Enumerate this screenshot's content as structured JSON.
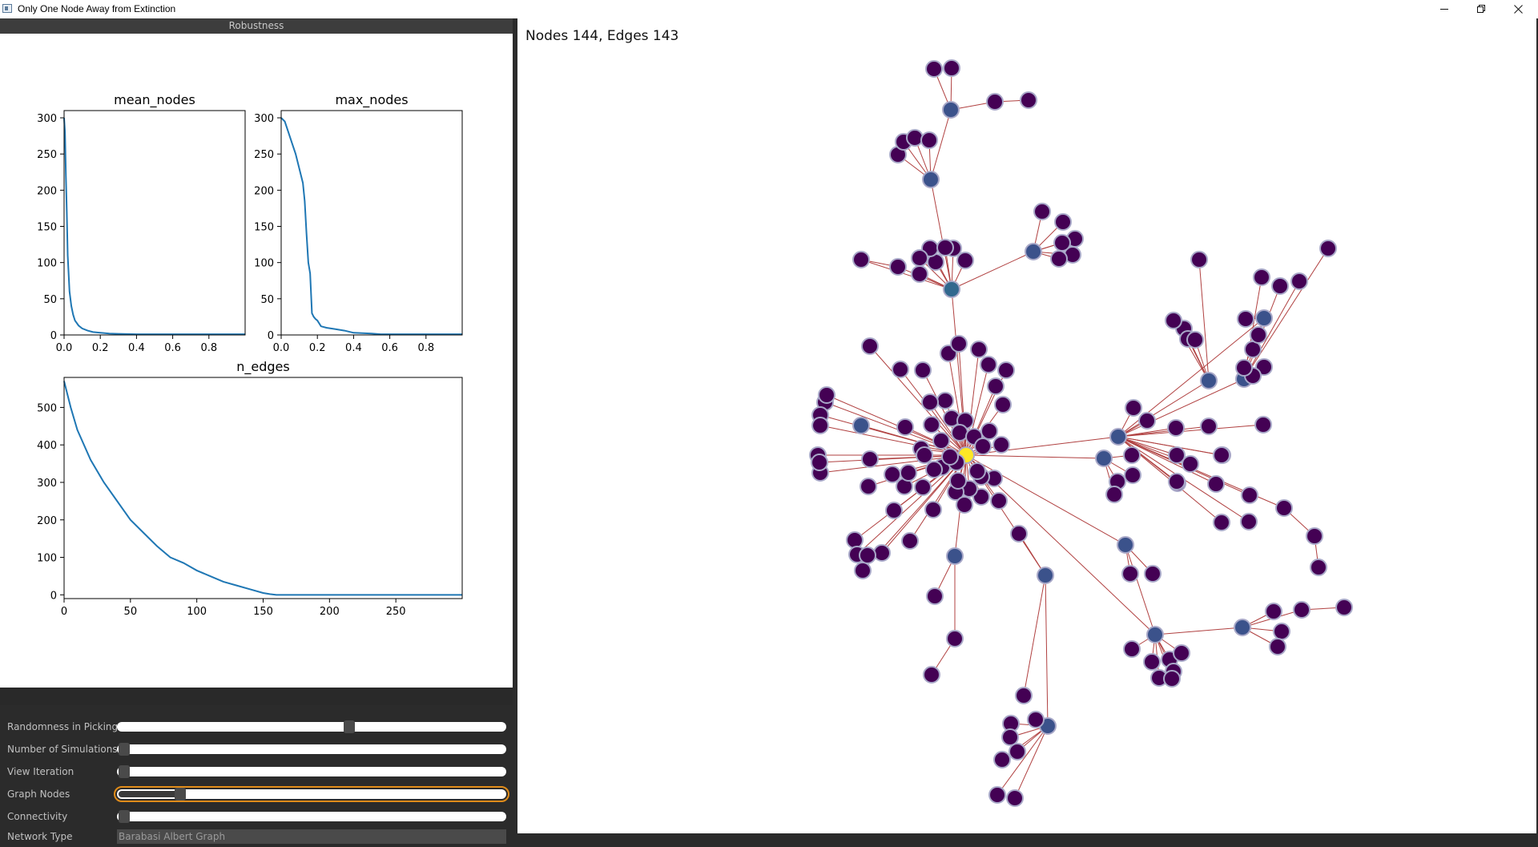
{
  "window": {
    "title": "Only One Node Away from Extinction",
    "minimize_icon": "minimize-icon",
    "restore_icon": "restore-icon",
    "close_icon": "close-icon"
  },
  "left_panel": {
    "header": "Robustness"
  },
  "chart_data": [
    {
      "type": "line",
      "title": "mean_nodes",
      "xlim": [
        0.0,
        1.0
      ],
      "ylim": [
        0,
        310
      ],
      "xticks": [
        "0.0",
        "0.2",
        "0.4",
        "0.6",
        "0.8"
      ],
      "yticks": [
        "0",
        "50",
        "100",
        "150",
        "200",
        "250",
        "300"
      ],
      "color": "#1f77b4",
      "x": [
        0.0,
        0.005,
        0.01,
        0.015,
        0.02,
        0.03,
        0.04,
        0.05,
        0.06,
        0.08,
        0.1,
        0.13,
        0.16,
        0.2,
        0.25,
        0.3,
        0.4,
        0.5,
        0.6,
        0.8,
        1.0
      ],
      "y": [
        300,
        280,
        220,
        170,
        110,
        60,
        40,
        28,
        20,
        13,
        9,
        6,
        4,
        3,
        2,
        1.5,
        1,
        1,
        1,
        1,
        1
      ]
    },
    {
      "type": "line",
      "title": "max_nodes",
      "xlim": [
        0.0,
        1.0
      ],
      "ylim": [
        0,
        310
      ],
      "xticks": [
        "0.0",
        "0.2",
        "0.4",
        "0.6",
        "0.8"
      ],
      "yticks": [
        "0",
        "50",
        "100",
        "150",
        "200",
        "250",
        "300"
      ],
      "color": "#1f77b4",
      "x": [
        0.0,
        0.02,
        0.04,
        0.06,
        0.08,
        0.1,
        0.12,
        0.13,
        0.14,
        0.15,
        0.16,
        0.17,
        0.18,
        0.19,
        0.2,
        0.22,
        0.25,
        0.3,
        0.35,
        0.4,
        0.5,
        0.55,
        1.0
      ],
      "y": [
        300,
        295,
        280,
        265,
        250,
        230,
        210,
        185,
        140,
        100,
        85,
        30,
        25,
        22,
        20,
        12,
        10,
        8,
        6,
        3,
        2,
        1,
        1
      ]
    },
    {
      "type": "line",
      "title": "n_edges",
      "xlim": [
        0,
        300
      ],
      "ylim": [
        -10,
        580
      ],
      "xticks": [
        "0",
        "50",
        "100",
        "150",
        "200",
        "250"
      ],
      "yticks": [
        "0",
        "100",
        "200",
        "300",
        "400",
        "500"
      ],
      "color": "#1f77b4",
      "x": [
        0,
        5,
        10,
        20,
        30,
        40,
        50,
        60,
        70,
        80,
        90,
        100,
        110,
        120,
        130,
        140,
        150,
        155,
        160,
        200,
        250,
        300
      ],
      "y": [
        570,
        500,
        440,
        360,
        300,
        250,
        200,
        165,
        130,
        100,
        85,
        65,
        50,
        35,
        25,
        15,
        5,
        2,
        0,
        0,
        0,
        0
      ]
    }
  ],
  "controls": [
    {
      "label": "Randomness in Picking",
      "value": 0.6,
      "active": false
    },
    {
      "label": "Number of Simulations",
      "value": 0.0,
      "active": false
    },
    {
      "label": "View Iteration",
      "value": 0.0,
      "active": false
    },
    {
      "label": "Graph Nodes",
      "value": 0.15,
      "active": true
    },
    {
      "label": "Connectivity",
      "value": 0.0,
      "active": false
    }
  ],
  "network_type": {
    "label": "Network Type",
    "value": "Barabasi Albert Graph"
  },
  "graph": {
    "title": "Nodes 144, Edges 143",
    "node_fill": "#440154",
    "hub_fill": "#fde725",
    "mid_fill": "#3b528b",
    "blue_fill": "#31688e",
    "edge_color": "#b04040",
    "node_stroke": "#a8a8c8"
  }
}
